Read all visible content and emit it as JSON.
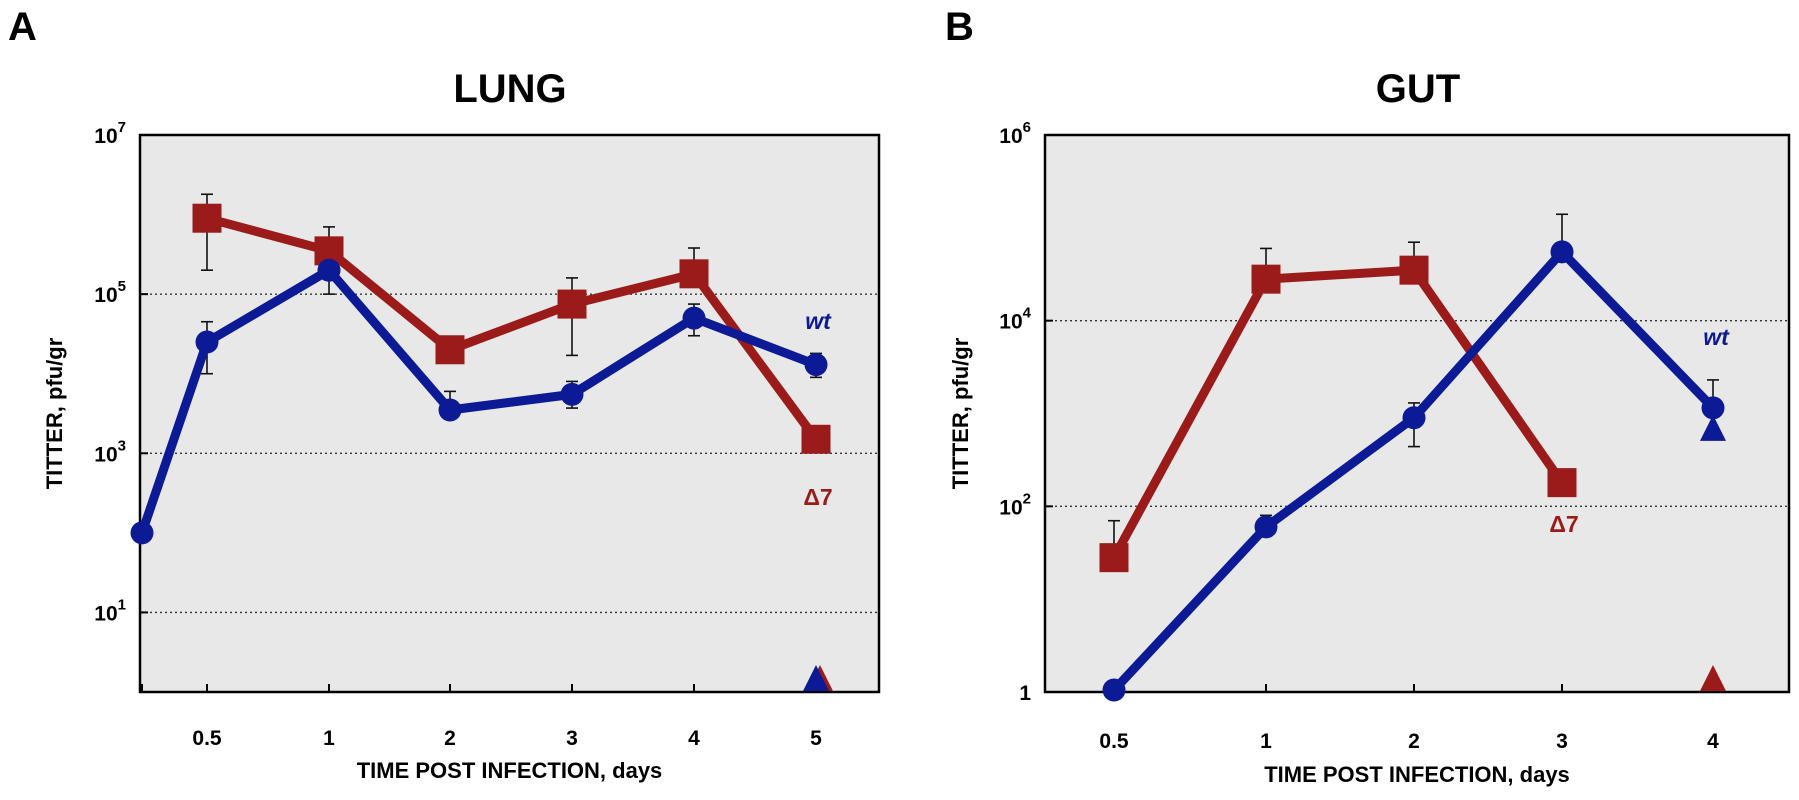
{
  "chart_data": [
    {
      "type": "line",
      "panel": "A",
      "title": "LUNG",
      "xlabel": "TIME POST INFECTION, days",
      "ylabel": "TITTER, pfu/gr",
      "y_scale": "log",
      "ylim": [
        1,
        10000000
      ],
      "y_ticks": [
        {
          "base": "10",
          "exp": "1",
          "value": 10
        },
        {
          "base": "10",
          "exp": "3",
          "value": 1000
        },
        {
          "base": "10",
          "exp": "5",
          "value": 100000
        },
        {
          "base": "10",
          "exp": "7",
          "value": 10000000
        }
      ],
      "grid": true,
      "categories": [
        "",
        "0.5",
        "1",
        "2",
        "3",
        "4",
        "5"
      ],
      "series": [
        {
          "name": "wt",
          "color": "#0c1a96",
          "marker": "circle",
          "values": [
            100,
            25000,
            200000,
            3500,
            5500,
            50000,
            13000
          ],
          "error_upper": [
            null,
            45000,
            null,
            6000,
            8000,
            75000,
            18000
          ],
          "error_lower": [
            null,
            10000,
            100000,
            null,
            3700,
            30000,
            9000
          ],
          "end_marker": {
            "category": "5",
            "value": 1.4,
            "shape": "triangle"
          }
        },
        {
          "name": "Δ7",
          "color": "#9b1b1b",
          "marker": "square",
          "values": [
            null,
            900000,
            350000,
            20000,
            75000,
            180000,
            1500
          ],
          "error_upper": [
            null,
            1800000,
            700000,
            28000,
            160000,
            380000,
            2200
          ],
          "error_lower": [
            null,
            200000,
            null,
            15000,
            17000,
            null,
            null
          ],
          "end_marker": {
            "category": "5",
            "value": 1.4,
            "shape": "triangle"
          }
        }
      ]
    },
    {
      "type": "line",
      "panel": "B",
      "title": "GUT",
      "xlabel": "TIME POST INFECTION, days",
      "ylabel": "TITTER, pfu/gr",
      "y_scale": "log",
      "ylim": [
        1,
        1000000
      ],
      "y_ticks": [
        {
          "base": "1",
          "exp": "",
          "value": 1
        },
        {
          "base": "10",
          "exp": "2",
          "value": 100
        },
        {
          "base": "10",
          "exp": "4",
          "value": 10000
        },
        {
          "base": "10",
          "exp": "6",
          "value": 1000000
        }
      ],
      "grid": true,
      "categories": [
        "0.5",
        "1",
        "2",
        "3",
        "4"
      ],
      "series": [
        {
          "name": "wt",
          "color": "#0c1a96",
          "marker": "circle",
          "values": [
            1.05,
            60,
            900,
            55000,
            1150
          ],
          "error_upper": [
            1.25,
            80,
            1300,
            140000,
            2300
          ],
          "error_lower": [
            null,
            48,
            440,
            null,
            null
          ],
          "end_marker": {
            "category": "4",
            "value": 700,
            "shape": "triangle"
          }
        },
        {
          "name": "Δ7",
          "color": "#9b1b1b",
          "marker": "square",
          "values": [
            28,
            28000,
            35000,
            180,
            null
          ],
          "error_upper": [
            70,
            60000,
            70000,
            250,
            null
          ],
          "error_lower": [
            null,
            null,
            null,
            null,
            null
          ],
          "end_marker": {
            "category": "4",
            "value": 1.1,
            "shape": "triangle"
          }
        }
      ]
    }
  ]
}
